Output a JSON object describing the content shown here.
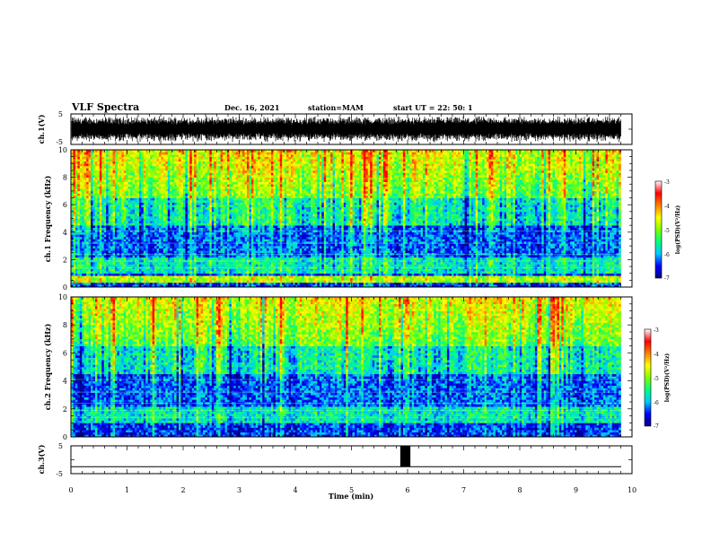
{
  "header": {
    "title": "VLF Spectra",
    "date": "Dec. 16, 2021",
    "station": "station=MAM",
    "start": "start UT = 22: 50: 1"
  },
  "chart_data": [
    {
      "type": "line",
      "name": "ch1-waveform",
      "ylabel": "ch.1(V)",
      "ylim": [
        -5,
        5
      ],
      "yticks": [
        "5",
        "-5"
      ],
      "xlim": [
        0,
        10
      ]
    },
    {
      "type": "heatmap",
      "name": "ch1-spectrogram",
      "ylabel": "ch.1 Frequency (kHz)",
      "ylim": [
        0,
        10
      ],
      "yticks": [
        "0",
        "2",
        "4",
        "6",
        "8",
        "10"
      ],
      "xlim": [
        0,
        10
      ],
      "data_end_min": 9.8,
      "colorbar": {
        "label": "log(PSD)(V²/Hz)",
        "range": [
          -7,
          -3
        ],
        "ticks": [
          "-3",
          "-4",
          "-5",
          "-6",
          "-7"
        ]
      }
    },
    {
      "type": "heatmap",
      "name": "ch2-spectrogram",
      "ylabel": "ch.2 Frequency (kHz)",
      "ylim": [
        0,
        10
      ],
      "yticks": [
        "0",
        "2",
        "4",
        "6",
        "8",
        "10"
      ],
      "xlim": [
        0,
        10
      ],
      "data_end_min": 9.8,
      "colorbar": {
        "label": "log(PSD)(V²/Hz)",
        "range": [
          -7,
          -3
        ],
        "ticks": [
          "-3",
          "-4",
          "-5",
          "-6",
          "-7"
        ]
      }
    },
    {
      "type": "line",
      "name": "ch3-trace",
      "ylabel": "ch.3(V)",
      "ylim": [
        -5,
        5
      ],
      "yticks": [
        "5",
        "-5"
      ],
      "xlim": [
        0,
        10
      ],
      "xlabel": "Time (min)",
      "xticks": [
        "0",
        "1",
        "2",
        "3",
        "4",
        "5",
        "6",
        "7",
        "8",
        "9",
        "10"
      ],
      "baseline_v": -2.5,
      "pulse": {
        "start_min": 5.87,
        "end_min": 6.05,
        "value_v": 5
      }
    }
  ],
  "colors": {
    "colormap": [
      "#000080",
      "#0000ff",
      "#00c8ff",
      "#00ff80",
      "#80ff00",
      "#ffff00",
      "#ff8000",
      "#ff0000",
      "#ffffff"
    ]
  }
}
